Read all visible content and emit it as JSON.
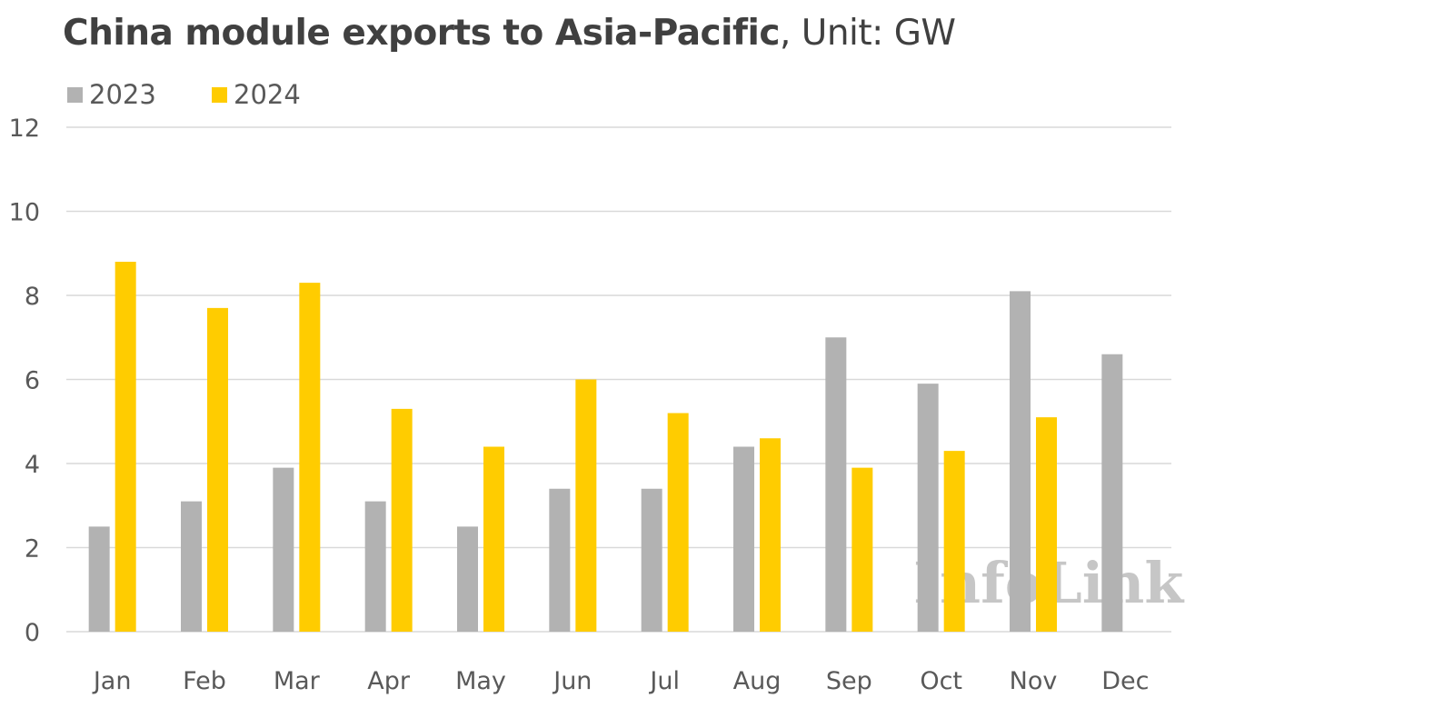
{
  "chart_data": {
    "type": "bar",
    "title": "China module exports to Asia-Pacific",
    "subtitle": ", Unit: GW",
    "categories": [
      "Jan",
      "Feb",
      "Mar",
      "Apr",
      "May",
      "Jun",
      "Jul",
      "Aug",
      "Sep",
      "Oct",
      "Nov",
      "Dec"
    ],
    "series": [
      {
        "name": "2023",
        "color": "#b2b2b2",
        "values": [
          2.5,
          3.1,
          3.9,
          3.1,
          2.5,
          3.4,
          3.4,
          4.4,
          7.0,
          5.9,
          8.1,
          6.6
        ]
      },
      {
        "name": "2024",
        "color": "#ffcc00",
        "values": [
          8.8,
          7.7,
          8.3,
          5.3,
          4.4,
          6.0,
          5.2,
          4.6,
          3.9,
          4.3,
          5.1,
          null
        ]
      }
    ],
    "ylim": [
      0,
      12
    ],
    "yticks": [
      0,
      2,
      4,
      6,
      8,
      10,
      12
    ],
    "xlabel": "",
    "ylabel": "",
    "grid": true,
    "legend_position": "top-left",
    "watermark": "InfoLink"
  }
}
